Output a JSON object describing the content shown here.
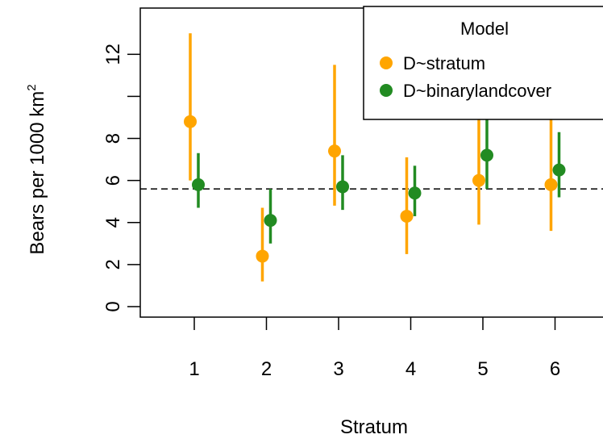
{
  "chart_data": {
    "type": "scatter",
    "xlabel": "Stratum",
    "ylabel_main": "Bears per 1000 km",
    "ylabel_sup": "2",
    "categories": [
      "1",
      "2",
      "3",
      "4",
      "5",
      "6"
    ],
    "yticks": [
      "0",
      "2",
      "4",
      "6",
      "8",
      "12"
    ],
    "ylim": [
      -0.5,
      14.2
    ],
    "reference_line": 5.6,
    "legend": {
      "title": "Model",
      "placement": "top-right"
    },
    "colors": {
      "stratum": "#ffa500",
      "binary": "#228b22"
    },
    "series": [
      {
        "name": "D~stratum",
        "estimate": [
          8.8,
          2.4,
          7.4,
          4.3,
          6.0,
          5.8
        ],
        "lower": [
          6.0,
          1.2,
          4.8,
          2.5,
          3.9,
          3.6
        ],
        "upper": [
          13.0,
          4.7,
          11.5,
          7.1,
          9.4,
          9.4
        ]
      },
      {
        "name": "D~binarylandcover",
        "estimate": [
          5.8,
          4.1,
          5.7,
          5.4,
          7.2,
          6.5
        ],
        "lower": [
          4.7,
          3.0,
          4.6,
          4.3,
          5.6,
          5.2
        ],
        "upper": [
          7.3,
          5.6,
          7.2,
          6.7,
          9.3,
          8.3
        ]
      }
    ]
  }
}
